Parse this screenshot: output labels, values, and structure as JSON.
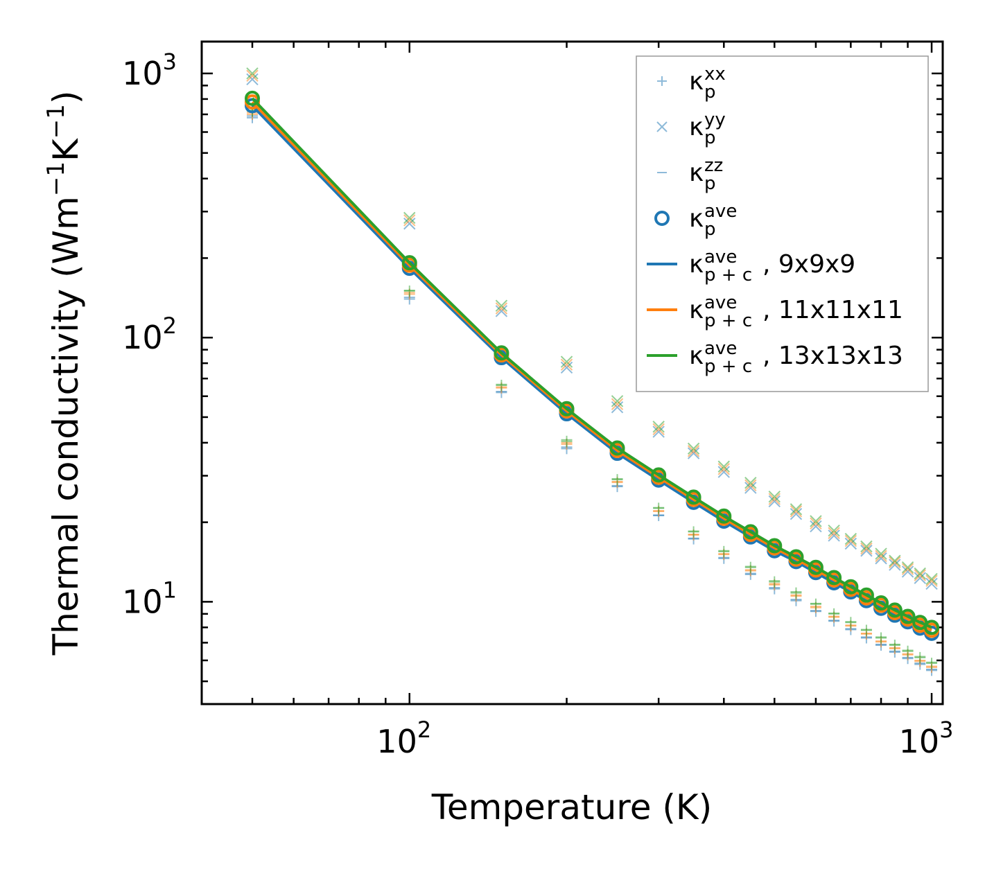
{
  "chart_data": {
    "type": "scatter",
    "xscale": "log",
    "yscale": "log",
    "xlabel": "Temperature (K)",
    "ylabel": {
      "prefix": "Thermal conductivity (Wm",
      "exp1": "−1",
      "mid": "K",
      "exp2": "−1",
      "suffix": ")"
    },
    "xlim": [
      40,
      1050
    ],
    "ylim": [
      4.1,
      1320
    ],
    "xticks": [
      {
        "base": "10",
        "exp": "2",
        "value": 100
      },
      {
        "base": "10",
        "exp": "3",
        "value": 1000
      }
    ],
    "yticks": [
      {
        "base": "10",
        "exp": "1",
        "value": 10
      },
      {
        "base": "10",
        "exp": "2",
        "value": 100
      },
      {
        "base": "10",
        "exp": "3",
        "value": 1000
      }
    ],
    "temperatures": [
      50,
      100,
      150,
      200,
      250,
      300,
      350,
      400,
      450,
      500,
      550,
      600,
      650,
      700,
      750,
      800,
      850,
      900,
      950,
      1000
    ],
    "colors": {
      "blue": "#1f77b4",
      "orange": "#ff7f0e",
      "green": "#2ca02c"
    },
    "series": [
      {
        "name": "9x9x9",
        "color": "#1f77b4",
        "kxx": [
          680,
          140,
          62,
          38,
          27.3,
          21.2,
          17.3,
          14.6,
          12.7,
          11.2,
          10.1,
          9.2,
          8.45,
          7.85,
          7.3,
          6.85,
          6.45,
          6.1,
          5.8,
          5.5
        ],
        "kyy": [
          950,
          270,
          126,
          77,
          54.5,
          44,
          36.5,
          31,
          27,
          24,
          21.5,
          19.3,
          17.8,
          16.6,
          15.6,
          14.6,
          13.8,
          13,
          12.3,
          11.7
        ],
        "kzz": [
          690,
          142,
          62.5,
          38.5,
          27.5,
          21.3,
          17.4,
          14.7,
          12.8,
          11.3,
          10.2,
          9.25,
          8.5,
          7.9,
          7.35,
          6.9,
          6.5,
          6.15,
          5.85,
          5.55
        ],
        "kave": [
          755,
          183,
          84,
          51.5,
          36.5,
          28.9,
          23.8,
          20.2,
          17.6,
          15.6,
          14.2,
          12.9,
          11.8,
          10.9,
          10.1,
          9.45,
          8.9,
          8.4,
          7.95,
          7.6
        ],
        "kpc": [
          755,
          183,
          84,
          51.5,
          36.5,
          28.9,
          23.8,
          20.2,
          17.6,
          15.6,
          14.2,
          12.9,
          11.8,
          10.9,
          10.1,
          9.45,
          8.9,
          8.4,
          7.95,
          7.6
        ]
      },
      {
        "name": "11x11x11",
        "color": "#ff7f0e",
        "kxx": [
          700,
          146,
          64.5,
          39.5,
          28.3,
          22,
          17.9,
          15.1,
          13.1,
          11.6,
          10.5,
          9.5,
          8.75,
          8.1,
          7.55,
          7.05,
          6.65,
          6.3,
          5.95,
          5.65
        ],
        "kyy": [
          980,
          278,
          129,
          79,
          56,
          45,
          37.2,
          31.8,
          27.6,
          24.5,
          22,
          19.8,
          18.2,
          17,
          15.9,
          14.9,
          14.1,
          13.3,
          12.6,
          12
        ],
        "kzz": [
          710,
          148,
          65,
          40,
          28.5,
          22.1,
          18,
          15.2,
          13.2,
          11.7,
          10.6,
          9.6,
          8.8,
          8.15,
          7.6,
          7.1,
          6.7,
          6.35,
          6,
          5.7
        ],
        "kave": [
          780,
          188,
          86,
          52.8,
          37.4,
          29.6,
          24.4,
          20.7,
          18,
          16,
          14.5,
          13.2,
          12.1,
          11.15,
          10.35,
          9.7,
          9.1,
          8.6,
          8.15,
          7.8
        ],
        "kpc": [
          780,
          188,
          86,
          52.8,
          37.4,
          29.6,
          24.4,
          20.7,
          18,
          16,
          14.5,
          13.2,
          12.1,
          11.15,
          10.35,
          9.7,
          9.1,
          8.6,
          8.15,
          7.8
        ]
      },
      {
        "name": "13x13x13",
        "color": "#2ca02c",
        "kxx": [
          720,
          150,
          66,
          40.5,
          29,
          22.6,
          18.4,
          15.5,
          13.5,
          11.9,
          10.8,
          9.8,
          9,
          8.35,
          7.8,
          7.3,
          6.85,
          6.5,
          6.15,
          5.85
        ],
        "kyy": [
          1000,
          284,
          132,
          81,
          57.5,
          46,
          38,
          32.5,
          28.2,
          25,
          22.4,
          20.2,
          18.6,
          17.3,
          16.2,
          15.2,
          14.3,
          13.5,
          12.8,
          12.2
        ],
        "kzz": [
          725,
          151,
          66.5,
          41,
          29.2,
          22.7,
          18.5,
          15.6,
          13.6,
          12,
          10.9,
          9.85,
          9.05,
          8.4,
          7.85,
          7.35,
          6.9,
          6.55,
          6.2,
          5.9
        ],
        "kave": [
          805,
          192,
          87.5,
          53.8,
          38.2,
          30.2,
          24.9,
          21.1,
          18.4,
          16.3,
          14.8,
          13.5,
          12.35,
          11.4,
          10.6,
          9.9,
          9.3,
          8.8,
          8.35,
          8
        ],
        "kpc": [
          805,
          192,
          87.5,
          53.8,
          38.2,
          30.2,
          24.9,
          21.1,
          18.4,
          16.3,
          14.8,
          13.5,
          12.35,
          11.4,
          10.6,
          9.9,
          9.3,
          8.8,
          8.35,
          8
        ]
      }
    ],
    "legend": {
      "position": "top-right",
      "entries": [
        {
          "symbol": "κ",
          "sub": "p",
          "sup": "xx",
          "suffix": "",
          "marker": "plus",
          "color": "#1f77b4"
        },
        {
          "symbol": "κ",
          "sub": "p",
          "sup": "yy",
          "suffix": "",
          "marker": "x",
          "color": "#1f77b4"
        },
        {
          "symbol": "κ",
          "sub": "p",
          "sup": "zz",
          "suffix": "",
          "marker": "dash",
          "color": "#1f77b4"
        },
        {
          "symbol": "κ",
          "sub": "p",
          "sup": "ave",
          "suffix": "",
          "marker": "circle",
          "color": "#1f77b4"
        },
        {
          "symbol": "κ",
          "sub": "p + c",
          "sup": "ave",
          "suffix": ", 9x9x9",
          "marker": "line",
          "color": "#1f77b4"
        },
        {
          "symbol": "κ",
          "sub": "p + c",
          "sup": "ave",
          "suffix": ", 11x11x11",
          "marker": "line",
          "color": "#ff7f0e"
        },
        {
          "symbol": "κ",
          "sub": "p + c",
          "sup": "ave",
          "suffix": ", 13x13x13",
          "marker": "line",
          "color": "#2ca02c"
        }
      ]
    }
  }
}
